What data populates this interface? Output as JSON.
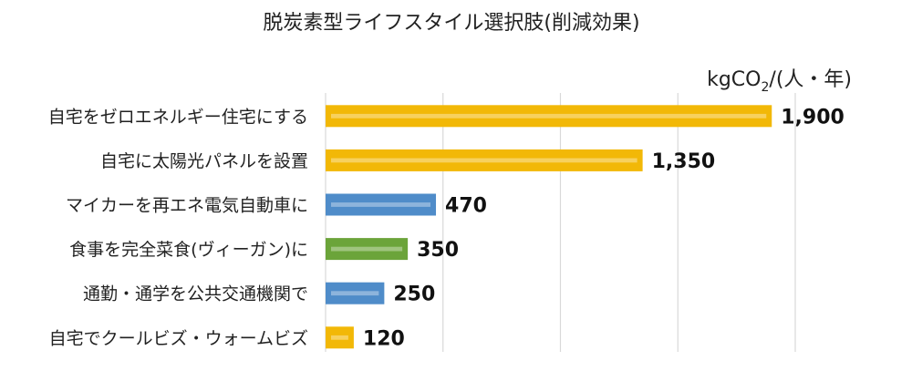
{
  "chart_data": {
    "type": "bar",
    "orientation": "horizontal",
    "title": "脱炭素型ライフスタイル選択肢(削減効果)",
    "unit": {
      "prefix": "kgCO",
      "sub": "2",
      "suffix": "/(人・年)"
    },
    "categories": [
      "自宅をゼロエネルギー住宅にする",
      "自宅に太陽光パネルを設置",
      "マイカーを再エネ電気自動車に",
      "食事を完全菜食(ヴィーガン)に",
      "通勤・通学を公共交通機関で",
      "自宅でクールビズ・ウォームビズ"
    ],
    "values": [
      1900,
      1350,
      470,
      350,
      250,
      120
    ],
    "value_labels": [
      "1,900",
      "1,350",
      "470",
      "350",
      "250",
      "120"
    ],
    "bar_colors": [
      "#F2B807",
      "#F2B807",
      "#4F8CC9",
      "#6BA43A",
      "#4F8CC9",
      "#F2B807"
    ],
    "xlim": [
      0,
      2000
    ],
    "gridlines": [
      0,
      500,
      1000,
      1500,
      2000
    ],
    "grid": true,
    "legend": "none"
  }
}
